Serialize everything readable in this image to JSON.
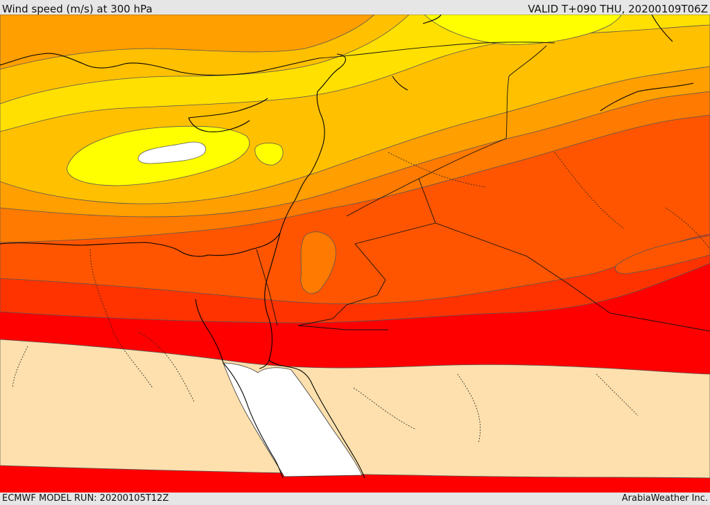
{
  "header": {
    "title": "Wind speed (m/s) at 300 hPa",
    "valid": "VALID T+090 THU, 20200109T06Z"
  },
  "footer": {
    "model_run": "ECMWF MODEL RUN: 20200105T12Z",
    "credit": "ArabiaWeather Inc."
  },
  "palette": {
    "lt15": "#ffffff",
    "b15_20": "#fde0ad",
    "b20_25": "#ffff00",
    "b25_30": "#ffe000",
    "b30_35": "#ffc000",
    "b35_40": "#ff9f00",
    "b40_45": "#ff7a00",
    "b45_50": "#ff5500",
    "b50_55": "#ff3300",
    "b55_60": "#ff0000",
    "coast": "#000000",
    "border": "#222222"
  }
}
